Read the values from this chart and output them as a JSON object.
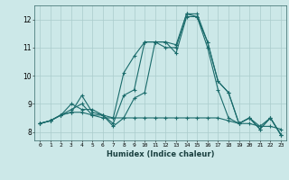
{
  "xlabel": "Humidex (Indice chaleur)",
  "background_color": "#cce8e8",
  "grid_color": "#aacccc",
  "line_color": "#1a6b6b",
  "x_ticks": [
    0,
    1,
    2,
    3,
    4,
    5,
    6,
    7,
    8,
    9,
    10,
    11,
    12,
    13,
    14,
    15,
    16,
    17,
    18,
    19,
    20,
    21,
    22,
    23
  ],
  "ylim": [
    7.7,
    12.5
  ],
  "xlim": [
    -0.5,
    23.5
  ],
  "yticks": [
    8,
    9,
    10,
    11,
    12
  ],
  "series": [
    [
      8.3,
      8.4,
      8.6,
      8.7,
      9.3,
      8.7,
      8.6,
      8.3,
      9.3,
      9.5,
      11.2,
      11.2,
      11.2,
      11.1,
      12.2,
      12.2,
      11.2,
      9.8,
      9.4,
      8.3,
      8.5,
      8.1,
      8.5,
      7.9
    ],
    [
      8.3,
      8.4,
      8.6,
      9.0,
      8.8,
      8.8,
      8.6,
      8.2,
      8.5,
      9.2,
      9.4,
      11.2,
      11.2,
      10.8,
      12.1,
      12.1,
      11.0,
      9.5,
      8.5,
      8.3,
      8.5,
      8.1,
      8.5,
      7.9
    ],
    [
      8.3,
      8.4,
      8.6,
      8.8,
      9.0,
      8.6,
      8.6,
      8.5,
      10.1,
      10.7,
      11.2,
      11.2,
      11.0,
      11.0,
      12.2,
      12.1,
      11.2,
      9.8,
      9.4,
      8.3,
      8.5,
      8.2,
      8.5,
      7.9
    ],
    [
      8.3,
      8.4,
      8.6,
      8.7,
      8.7,
      8.6,
      8.5,
      8.5,
      8.5,
      8.5,
      8.5,
      8.5,
      8.5,
      8.5,
      8.5,
      8.5,
      8.5,
      8.5,
      8.4,
      8.3,
      8.3,
      8.2,
      8.2,
      8.1
    ]
  ]
}
